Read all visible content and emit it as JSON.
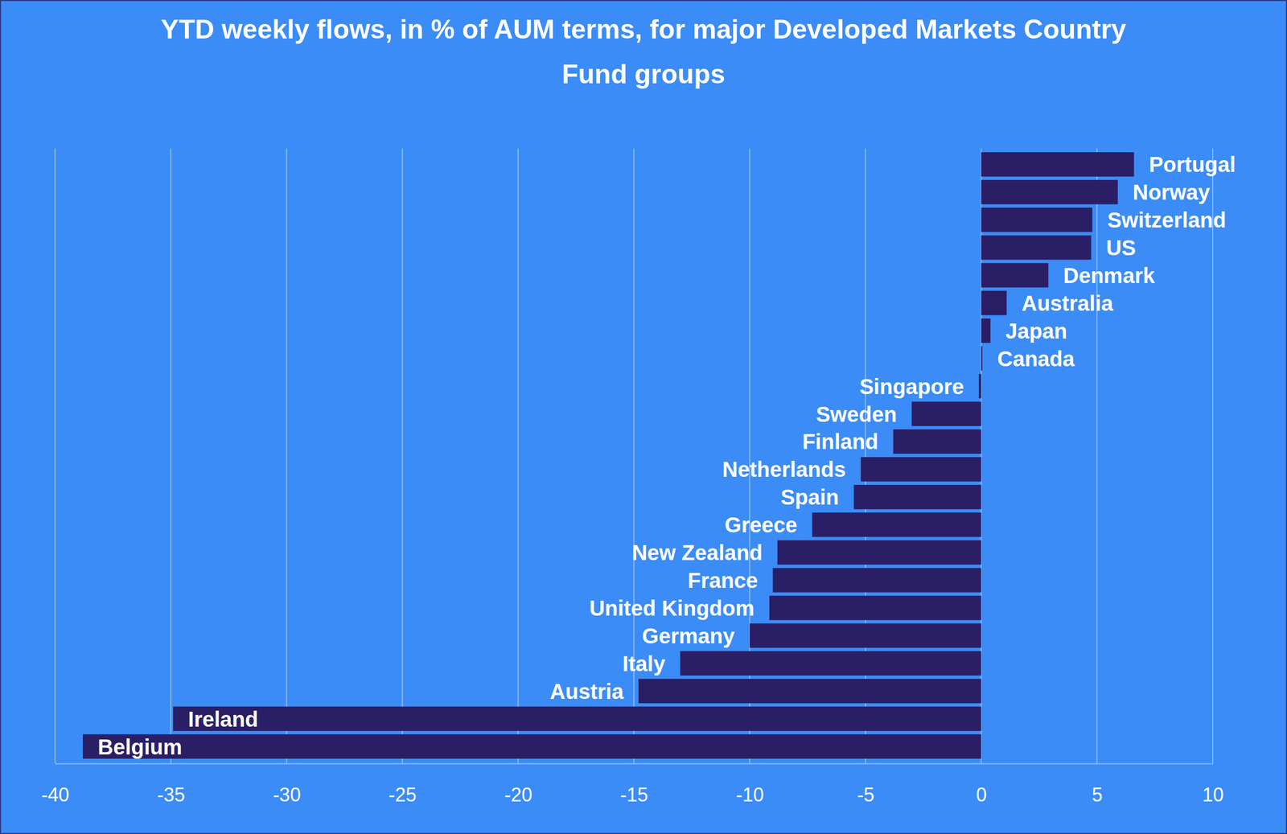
{
  "chart_data": {
    "type": "bar",
    "orientation": "horizontal",
    "title": "YTD weekly flows, in % of AUM terms, for major Developed Markets Country Fund groups",
    "categories": [
      "Portugal",
      "Norway",
      "Switzerland",
      "US",
      "Denmark",
      "Australia",
      "Japan",
      "Canada",
      "Singapore",
      "Sweden",
      "Finland",
      "Netherlands",
      "Spain",
      "Greece",
      "New Zealand",
      "France",
      "United Kingdom",
      "Germany",
      "Italy",
      "Austria",
      "Ireland",
      "Belgium"
    ],
    "values": [
      6.6,
      5.9,
      4.8,
      4.75,
      2.9,
      1.1,
      0.4,
      0.05,
      -0.1,
      -3.0,
      -3.8,
      -5.2,
      -5.5,
      -7.3,
      -8.8,
      -9.0,
      -9.15,
      -10.0,
      -13.0,
      -14.8,
      -34.9,
      -38.8
    ],
    "color": "#2a1f66",
    "xlim": [
      -40,
      10
    ],
    "xticks": [
      -40,
      -35,
      -30,
      -25,
      -20,
      -15,
      -10,
      -5,
      0,
      5,
      10
    ],
    "grid": true
  }
}
